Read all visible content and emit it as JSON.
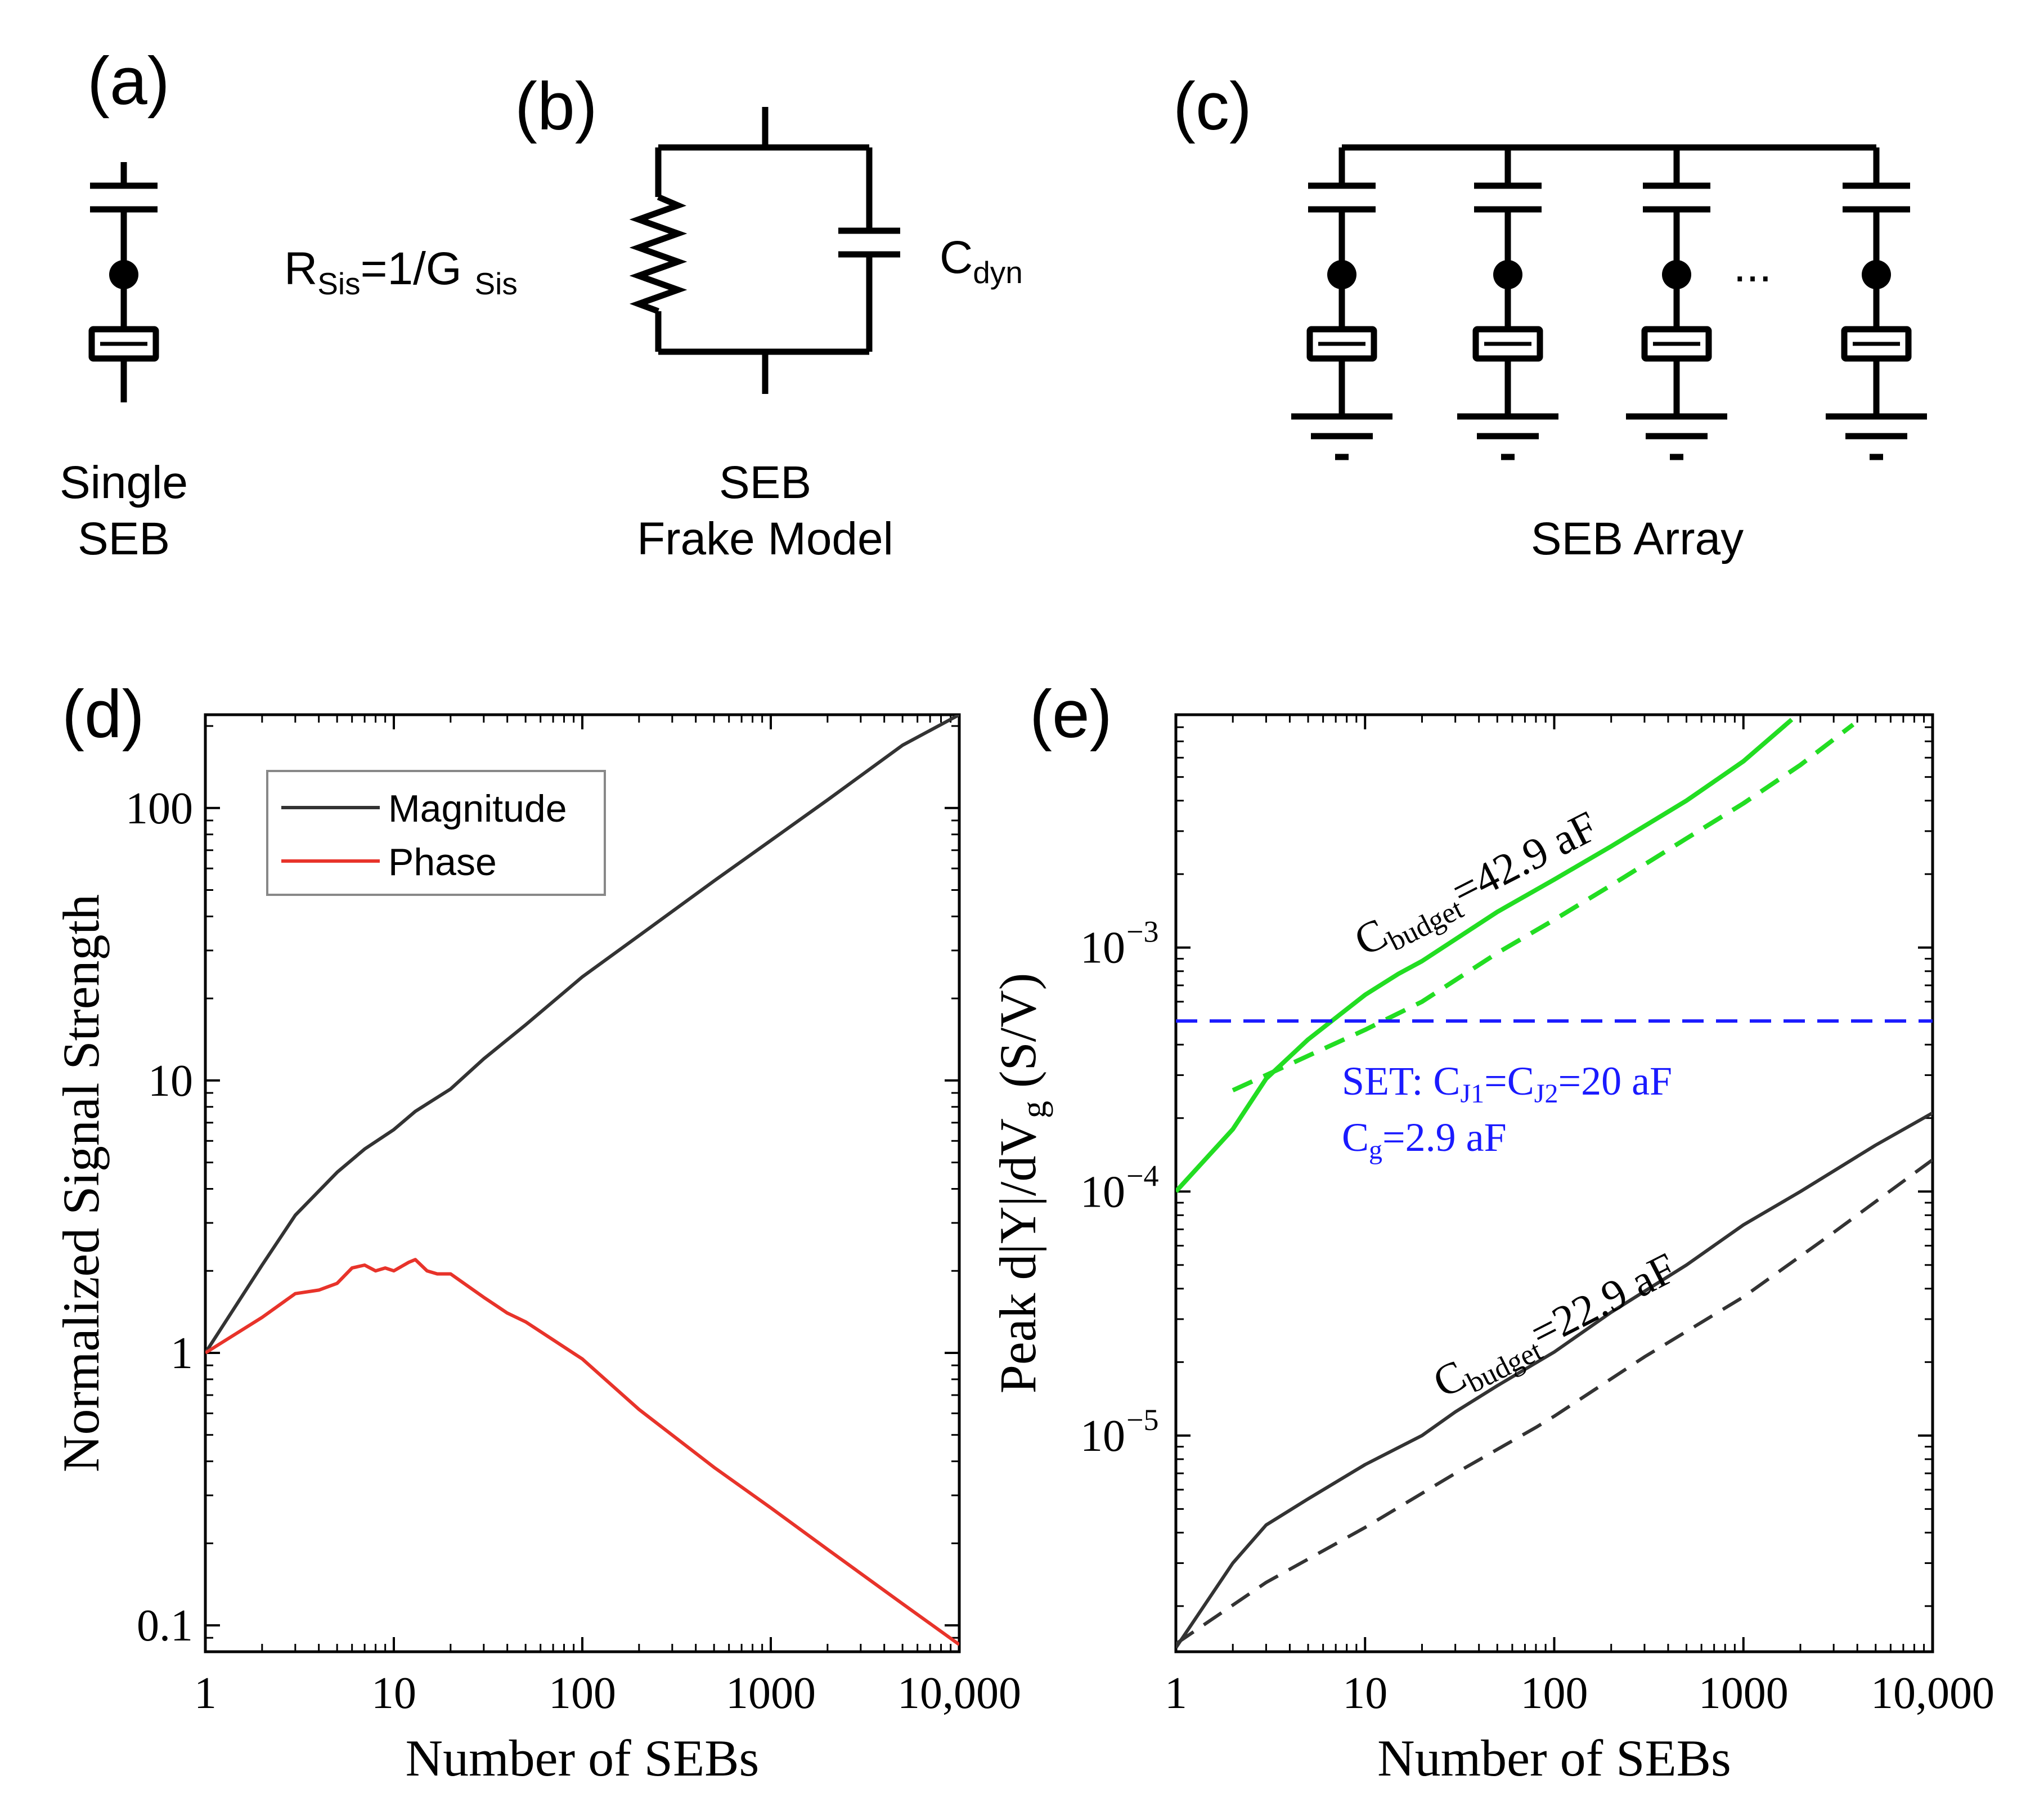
{
  "panels": {
    "a": {
      "tag": "(a)",
      "caption_line1": "Single",
      "caption_line2": "SEB"
    },
    "b": {
      "tag": "(b)",
      "caption_line1": "SEB",
      "caption_line2": "Frake Model",
      "resistor_label": "R",
      "resistor_sub": "Sis",
      "resistor_eq": "=1/G ",
      "resistor_eq_sub": "Sis",
      "cap_label": "C",
      "cap_sub": "dyn"
    },
    "c": {
      "tag": "(c)",
      "caption": "SEB Array",
      "ellipsis": "..."
    },
    "d": {
      "tag": "(d)"
    },
    "e": {
      "tag": "(e)"
    }
  },
  "colors": {
    "black": "#000000",
    "magnitude": "#333333",
    "phase": "#e8332a",
    "green": "#22dd22",
    "blue": "#1a1aff"
  },
  "chart_data": [
    {
      "id": "d",
      "type": "line",
      "xscale": "log",
      "yscale": "log",
      "xlabel": "Number of SEBs",
      "ylabel": "Normalized Signal Strength",
      "xlim": [
        1,
        10000
      ],
      "ylim": [
        0.08,
        220
      ],
      "xticks": [
        1,
        10,
        100,
        1000,
        10000
      ],
      "xtick_labels": [
        "1",
        "10",
        "100",
        "1000",
        "10,000"
      ],
      "yticks": [
        0.1,
        1,
        10,
        100
      ],
      "ytick_labels": [
        "0.1",
        "1",
        "10",
        "100"
      ],
      "legend": {
        "placement": "top-left",
        "entries": [
          "Magnitude",
          "Phase"
        ]
      },
      "series": [
        {
          "name": "Magnitude",
          "color": "#333333",
          "dash": "solid",
          "x": [
            1,
            2,
            3,
            5,
            7,
            10,
            13,
            20,
            30,
            50,
            100,
            200,
            500,
            1000,
            2000,
            5000,
            10000
          ],
          "y": [
            1,
            2.1,
            3.2,
            4.6,
            5.6,
            6.6,
            7.7,
            9.3,
            12,
            16,
            24,
            34,
            54,
            76,
            107,
            170,
            220
          ]
        },
        {
          "name": "Phase",
          "color": "#e8332a",
          "dash": "solid",
          "x": [
            1,
            2,
            3,
            4,
            5,
            6,
            7,
            8,
            9,
            10,
            12,
            13,
            15,
            17,
            20,
            30,
            40,
            50,
            100,
            200,
            500,
            1000,
            2000,
            5000,
            10000
          ],
          "y": [
            1,
            1.35,
            1.65,
            1.7,
            1.8,
            2.05,
            2.1,
            2.0,
            2.05,
            2.0,
            2.15,
            2.2,
            2.0,
            1.95,
            1.95,
            1.6,
            1.4,
            1.3,
            0.95,
            0.62,
            0.38,
            0.27,
            0.19,
            0.12,
            0.085
          ]
        }
      ]
    },
    {
      "id": "e",
      "type": "line",
      "xscale": "log",
      "yscale": "log",
      "xlabel": "Number of SEBs",
      "ylabel_parts": [
        "Peak d|Y|/dV",
        "g",
        " (S/V)"
      ],
      "xlim": [
        1,
        10000
      ],
      "ylim": [
        1.3e-06,
        0.009
      ],
      "xticks": [
        1,
        10,
        100,
        1000,
        10000
      ],
      "xtick_labels": [
        "1",
        "10",
        "100",
        "1000",
        "10,000"
      ],
      "yticks": [
        1e-05,
        0.0001,
        0.001
      ],
      "ytick_labels": [
        "10",
        "10",
        "10"
      ],
      "ytick_exponents": [
        "−5",
        "−4",
        "−3"
      ],
      "annotations": {
        "green_curve": {
          "base": "C",
          "sub": "budget",
          "rest": "=42.9 aF"
        },
        "black_curve": {
          "base": "C",
          "sub": "budget",
          "rest": "=22.9 aF"
        },
        "set_line1": {
          "t1": "SET: C",
          "s1": "J1",
          "t2": "=C",
          "s2": "J2",
          "t3": "=20 aF"
        },
        "set_line2": {
          "t1": "C",
          "s1": "g",
          "t2": "=2.9 aF"
        }
      },
      "series": [
        {
          "name": "C_budget=42.9 aF (solid)",
          "color": "#22dd22",
          "dash": "solid",
          "x": [
            1,
            2,
            3,
            5,
            10,
            15,
            20,
            50,
            100,
            200,
            500,
            1000,
            1800
          ],
          "y": [
            0.0001,
            0.00018,
            0.00029,
            0.00042,
            0.00064,
            0.00078,
            0.00088,
            0.0014,
            0.0019,
            0.0026,
            0.004,
            0.0058,
            0.0086
          ]
        },
        {
          "name": "C_budget=42.9 aF (dashed)",
          "color": "#22dd22",
          "dash": "dashed",
          "x": [
            2,
            3,
            5,
            10,
            20,
            50,
            100,
            200,
            500,
            1000,
            2000,
            3800
          ],
          "y": [
            0.00026,
            0.0003,
            0.00036,
            0.00046,
            0.0006,
            0.00095,
            0.0013,
            0.0018,
            0.0028,
            0.0039,
            0.0056,
            0.0082
          ]
        },
        {
          "name": "SET reference",
          "color": "#1a1aff",
          "dash": "dashed",
          "x": [
            1,
            10000
          ],
          "y": [
            0.0005,
            0.0005
          ]
        },
        {
          "name": "C_budget=22.9 aF (solid)",
          "color": "#333333",
          "dash": "solid",
          "x": [
            1,
            2,
            3,
            5,
            10,
            20,
            30,
            50,
            100,
            200,
            500,
            1000,
            2000,
            5000,
            10000
          ],
          "y": [
            1.35e-06,
            3e-06,
            4.3e-06,
            5.5e-06,
            7.6e-06,
            1e-05,
            1.25e-05,
            1.6e-05,
            2.2e-05,
            3.2e-05,
            5e-05,
            7.3e-05,
            0.0001,
            0.000155,
            0.00021
          ]
        },
        {
          "name": "C_budget=22.9 aF (dashed)",
          "color": "#333333",
          "dash": "dashed",
          "x": [
            1,
            3,
            10,
            30,
            80,
            100,
            300,
            1000,
            3000,
            10000
          ],
          "y": [
            1.4e-06,
            2.5e-06,
            4.2e-06,
            7e-06,
            1.08e-05,
            1.2e-05,
            2.1e-05,
            3.7e-05,
            6.8e-05,
            0.000135
          ]
        }
      ]
    }
  ]
}
